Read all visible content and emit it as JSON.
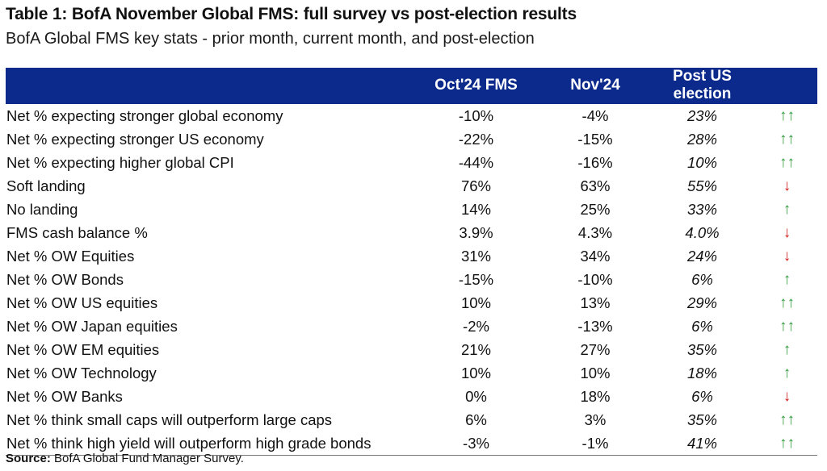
{
  "title": "Table 1: BofA November Global FMS: full survey vs post-election results",
  "subtitle": "BofA Global FMS key stats - prior month, current month, and post-election",
  "columns": [
    "",
    "Oct'24 FMS",
    "Nov'24",
    "Post US election",
    ""
  ],
  "arrow_glyphs": {
    "double_up": "↑↑",
    "up": "↑",
    "down": "↓"
  },
  "colors": {
    "header_bg": "#0b2a8c",
    "up": "#2f9b3a",
    "down": "#d21c1c"
  },
  "rows": [
    {
      "label": "Net % expecting stronger global economy",
      "oct": "-10%",
      "nov": "-4%",
      "post": "23%",
      "arrow": "double_up"
    },
    {
      "label": "Net % expecting stronger US economy",
      "oct": "-22%",
      "nov": "-15%",
      "post": "28%",
      "arrow": "double_up"
    },
    {
      "label": "Net % expecting higher global CPI",
      "oct": "-44%",
      "nov": "-16%",
      "post": "10%",
      "arrow": "double_up"
    },
    {
      "label": "Soft landing",
      "oct": "76%",
      "nov": "63%",
      "post": "55%",
      "arrow": "down"
    },
    {
      "label": "No landing",
      "oct": "14%",
      "nov": "25%",
      "post": "33%",
      "arrow": "up"
    },
    {
      "label": "FMS cash balance %",
      "oct": "3.9%",
      "nov": "4.3%",
      "post": "4.0%",
      "arrow": "down"
    },
    {
      "label": "Net % OW Equities",
      "oct": "31%",
      "nov": "34%",
      "post": "24%",
      "arrow": "down"
    },
    {
      "label": "Net % OW Bonds",
      "oct": "-15%",
      "nov": "-10%",
      "post": "6%",
      "arrow": "up"
    },
    {
      "label": "Net % OW US equities",
      "oct": "10%",
      "nov": "13%",
      "post": "29%",
      "arrow": "double_up"
    },
    {
      "label": "Net % OW Japan equities",
      "oct": "-2%",
      "nov": "-13%",
      "post": "6%",
      "arrow": "double_up"
    },
    {
      "label": "Net % OW EM equities",
      "oct": "21%",
      "nov": "27%",
      "post": "35%",
      "arrow": "up"
    },
    {
      "label": "Net % OW Technology",
      "oct": "10%",
      "nov": "10%",
      "post": "18%",
      "arrow": "up"
    },
    {
      "label": "Net % OW Banks",
      "oct": "0%",
      "nov": "18%",
      "post": "6%",
      "arrow": "down"
    },
    {
      "label": "Net % think small caps will outperform large caps",
      "oct": "6%",
      "nov": "3%",
      "post": "35%",
      "arrow": "double_up"
    },
    {
      "label": "Net % think high yield will outperform high grade bonds",
      "oct": "-3%",
      "nov": "-1%",
      "post": "41%",
      "arrow": "double_up"
    }
  ],
  "source": {
    "label": "Source:",
    "text": "BofA Global Fund Manager Survey."
  }
}
